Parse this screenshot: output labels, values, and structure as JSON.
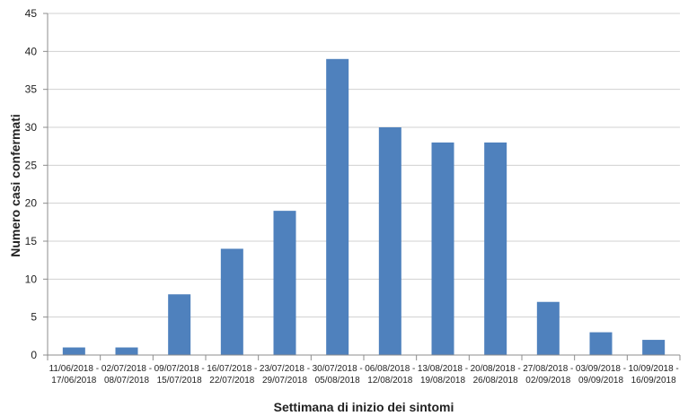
{
  "chart_data": {
    "type": "bar",
    "title": "",
    "xlabel": "Settimana di inizio dei sintomi",
    "ylabel": "Numero casi confermati",
    "ylim": [
      0,
      45
    ],
    "yticks": [
      0,
      5,
      10,
      15,
      20,
      25,
      30,
      35,
      40,
      45
    ],
    "grid": "horizontal",
    "bar_color": "#4F81BD",
    "categories": [
      "11/06/2018 - 17/06/2018",
      "02/07/2018 - 08/07/2018",
      "09/07/2018 - 15/07/2018",
      "16/07/2018 - 22/07/2018",
      "23/07/2018 - 29/07/2018",
      "30/07/2018 - 05/08/2018",
      "06/08/2018 - 12/08/2018",
      "13/08/2018 - 19/08/2018",
      "20/08/2018 - 26/08/2018",
      "27/08/2018 - 02/09/2018",
      "03/09/2018 - 09/09/2018",
      "10/09/2018 - 16/09/2018"
    ],
    "category_lines": [
      [
        "11/06/2018 -",
        "17/06/2018"
      ],
      [
        "02/07/2018 -",
        "08/07/2018"
      ],
      [
        "09/07/2018 -",
        "15/07/2018"
      ],
      [
        "16/07/2018 -",
        "22/07/2018"
      ],
      [
        "23/07/2018 -",
        "29/07/2018"
      ],
      [
        "30/07/2018 -",
        "05/08/2018"
      ],
      [
        "06/08/2018 -",
        "12/08/2018"
      ],
      [
        "13/08/2018 -",
        "19/08/2018"
      ],
      [
        "20/08/2018 -",
        "26/08/2018"
      ],
      [
        "27/08/2018 -",
        "02/09/2018"
      ],
      [
        "03/09/2018 -",
        "09/09/2018"
      ],
      [
        "10/09/2018 -",
        "16/09/2018"
      ]
    ],
    "values": [
      1,
      1,
      8,
      14,
      19,
      39,
      30,
      28,
      28,
      7,
      3,
      2
    ]
  }
}
